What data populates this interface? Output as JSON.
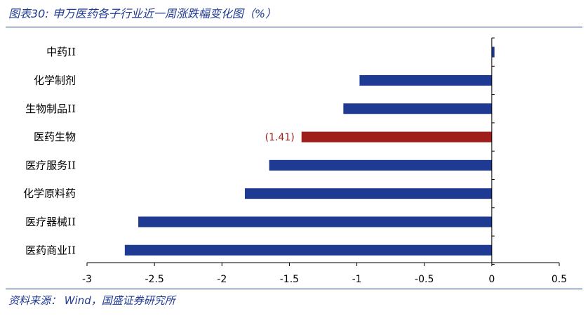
{
  "header": {
    "title": "图表30:  申万医药各子行业近一周涨跌幅变化图（%）"
  },
  "footer": {
    "source": "资料来源： Wind，国盛证券研究所"
  },
  "colors": {
    "bar": "#1f3a93",
    "highlight": "#a01e1a",
    "text": "#1f3a93"
  },
  "chart_data": {
    "type": "bar",
    "orientation": "horizontal",
    "categories": [
      "中药II",
      "化学制剂",
      "生物制品II",
      "医药生物",
      "医疗服务II",
      "化学原料药",
      "医疗器械II",
      "医药商业II"
    ],
    "values": [
      0.02,
      -0.98,
      -1.1,
      -1.41,
      -1.65,
      -1.83,
      -2.62,
      -2.72
    ],
    "highlight_index": 3,
    "data_labels": [
      {
        "index": 3,
        "text": "(1.41)"
      }
    ],
    "xlim": [
      -3,
      0.5
    ],
    "xticks": [
      -3,
      -2.5,
      -2,
      -1.5,
      -1,
      -0.5,
      0,
      0.5
    ],
    "xtick_labels": [
      "-3",
      "-2.5",
      "-2",
      "-1.5",
      "-1",
      "-0.5",
      "0",
      "0.5"
    ],
    "grid": false,
    "legend": "none"
  }
}
